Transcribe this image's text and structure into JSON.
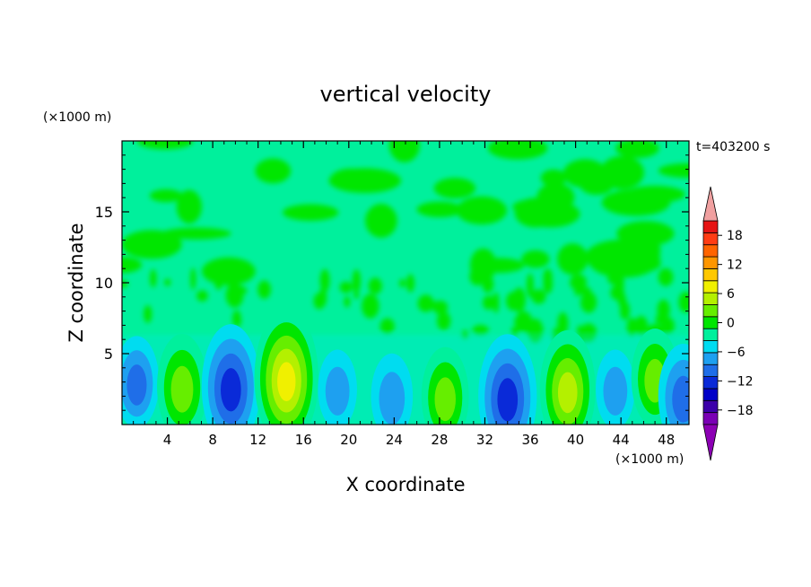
{
  "chart_data": {
    "type": "heatmap",
    "title": "vertical velocity",
    "xlabel": "X coordinate",
    "ylabel": "Z coordinate",
    "x_unit": "(×1000 m)",
    "y_unit": "(×1000 m)",
    "time_label": "t=403200 s",
    "xlim": [
      0,
      50
    ],
    "ylim": [
      0,
      20
    ],
    "x_ticks": [
      "4",
      "8",
      "12",
      "16",
      "20",
      "24",
      "28",
      "32",
      "36",
      "40",
      "44",
      "48"
    ],
    "x_tick_values": [
      4,
      8,
      12,
      16,
      20,
      24,
      28,
      32,
      36,
      40,
      44,
      48
    ],
    "y_ticks": [
      "5",
      "10",
      "15"
    ],
    "y_tick_values": [
      5,
      10,
      15
    ],
    "colorbar": {
      "min": -21,
      "max": 21,
      "step": 3,
      "labels": [
        "18",
        "12",
        "6",
        "0",
        "−6",
        "−12",
        "−18"
      ],
      "label_values": [
        18,
        12,
        6,
        0,
        -6,
        -12,
        -18
      ],
      "colors": [
        "#7a00b4",
        "#3c00aa",
        "#0000c8",
        "#0a2ad8",
        "#1f6ee8",
        "#1ea0f0",
        "#00dcf0",
        "#00f09c",
        "#00e600",
        "#66ee00",
        "#b4f000",
        "#f0f000",
        "#ffc800",
        "#ff9600",
        "#ff6400",
        "#ff3c14",
        "#e61414"
      ],
      "over_color": "#f0a0a0",
      "under_color": "#8c00b4"
    },
    "cells": [
      {
        "x": 1.3,
        "z": 3.0,
        "w": -7
      },
      {
        "x": 5.3,
        "z": 2.7,
        "w": 9
      },
      {
        "x": 9.6,
        "z": 2.7,
        "w": -12
      },
      {
        "x": 14.5,
        "z": 3.3,
        "w": 14
      },
      {
        "x": 19.0,
        "z": 2.5,
        "w": -5
      },
      {
        "x": 23.8,
        "z": 2.0,
        "w": -6
      },
      {
        "x": 28.5,
        "z": 2.0,
        "w": 8
      },
      {
        "x": 34.0,
        "z": 2.0,
        "w": -12
      },
      {
        "x": 39.3,
        "z": 2.5,
        "w": 11
      },
      {
        "x": 43.5,
        "z": 2.5,
        "w": -5
      },
      {
        "x": 47.0,
        "z": 3.3,
        "w": 8
      },
      {
        "x": 49.5,
        "z": 2.0,
        "w": -9
      }
    ]
  }
}
